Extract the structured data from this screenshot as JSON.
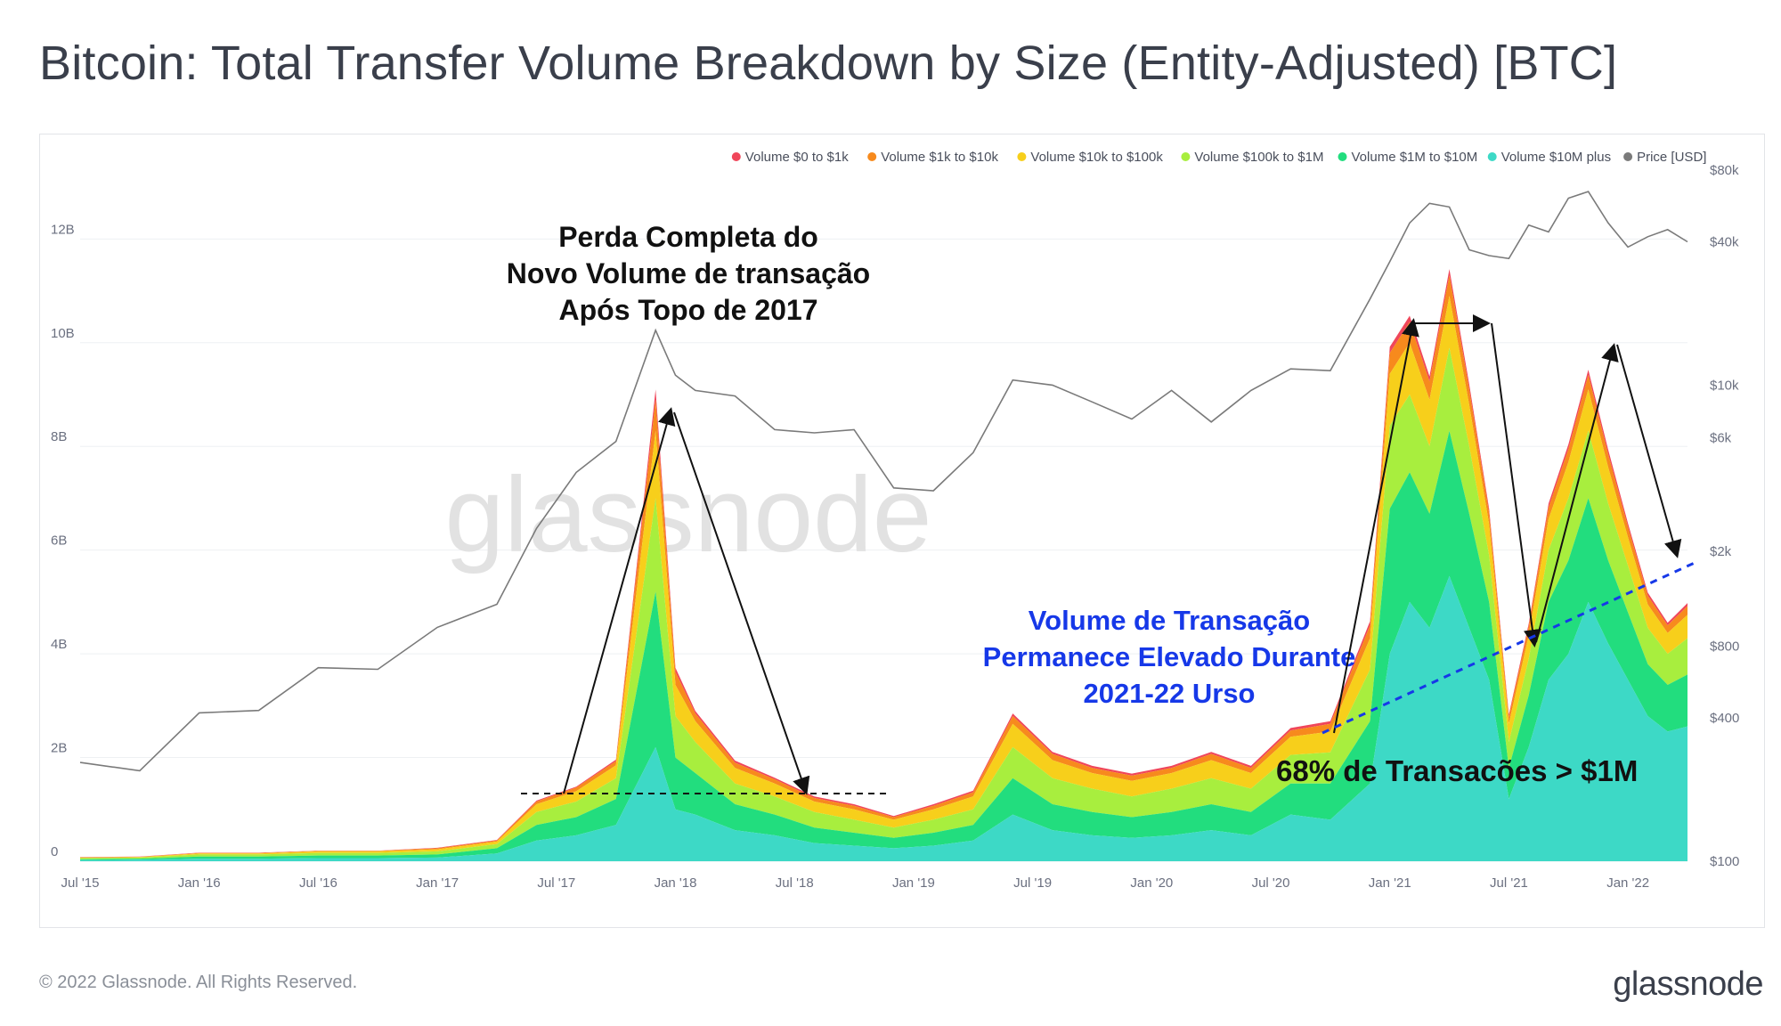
{
  "title": "Bitcoin: Total Transfer Volume Breakdown by Size (Entity-Adjusted) [BTC]",
  "footer": {
    "copyright": "© 2022 Glassnode. All Rights Reserved.",
    "logo": "glassnode"
  },
  "watermark": "glassnode",
  "chart_data": {
    "type": "area",
    "stacked": true,
    "y_left": {
      "ticks": [
        "0",
        "2B",
        "4B",
        "6B",
        "8B",
        "10B",
        "12B"
      ],
      "tick_values": [
        0,
        2,
        4,
        6,
        8,
        10,
        12
      ],
      "ylim": [
        0,
        13.5
      ],
      "unit": "billion BTC"
    },
    "y_right": {
      "scale": "log",
      "ticks": [
        "$100",
        "$400",
        "$800",
        "$2k",
        "$6k",
        "$10k",
        "$40k",
        "$80k"
      ],
      "tick_values": [
        100,
        400,
        800,
        2000,
        6000,
        10000,
        40000,
        80000
      ]
    },
    "x_ticks": [
      "Jul '15",
      "Jan '16",
      "Jul '16",
      "Jan '17",
      "Jul '17",
      "Jan '18",
      "Jul '18",
      "Jan '19",
      "Jul '19",
      "Jan '20",
      "Jul '20",
      "Jan '21",
      "Jul '21",
      "Jan '22"
    ],
    "x_range": [
      "2015-07",
      "2022-04"
    ],
    "legend_position": "top-right",
    "grid": true,
    "legend": [
      {
        "name": "Volume $0 to $1k",
        "color": "#f0465a"
      },
      {
        "name": "Volume $1k to $10k",
        "color": "#f78a1d"
      },
      {
        "name": "Volume $10k to $100k",
        "color": "#f7cf1b"
      },
      {
        "name": "Volume $100k to $1M",
        "color": "#a8ee3e"
      },
      {
        "name": "Volume $1M to $10M",
        "color": "#22dd7e"
      },
      {
        "name": "Volume $10M plus",
        "color": "#3dd9c6"
      },
      {
        "name": "Price [USD]",
        "color": "#7a7a7a"
      }
    ],
    "dates": [
      "2015-07",
      "2015-10",
      "2016-01",
      "2016-04",
      "2016-07",
      "2016-10",
      "2017-01",
      "2017-04",
      "2017-06",
      "2017-08",
      "2017-10",
      "2017-12",
      "2018-01",
      "2018-02",
      "2018-04",
      "2018-06",
      "2018-08",
      "2018-10",
      "2018-12",
      "2019-02",
      "2019-04",
      "2019-06",
      "2019-08",
      "2019-10",
      "2019-12",
      "2020-02",
      "2020-04",
      "2020-06",
      "2020-08",
      "2020-10",
      "2020-12",
      "2021-01",
      "2021-02",
      "2021-03",
      "2021-04",
      "2021-05",
      "2021-06",
      "2021-07",
      "2021-08",
      "2021-09",
      "2021-10",
      "2021-11",
      "2021-12",
      "2022-01",
      "2022-02",
      "2022-03",
      "2022-04"
    ],
    "series": [
      {
        "name": "Volume $10M plus",
        "values": [
          0.02,
          0.03,
          0.05,
          0.05,
          0.06,
          0.06,
          0.07,
          0.15,
          0.4,
          0.5,
          0.7,
          2.2,
          1.0,
          0.9,
          0.6,
          0.5,
          0.35,
          0.3,
          0.25,
          0.3,
          0.4,
          0.9,
          0.6,
          0.5,
          0.45,
          0.5,
          0.6,
          0.5,
          0.9,
          0.8,
          1.5,
          4.0,
          5.0,
          4.5,
          5.5,
          4.5,
          3.5,
          1.2,
          2.2,
          3.5,
          4.0,
          5.0,
          4.2,
          3.5,
          2.8,
          2.5,
          2.6
        ]
      },
      {
        "name": "Volume $1M to $10M",
        "values": [
          0.02,
          0.02,
          0.04,
          0.04,
          0.05,
          0.05,
          0.06,
          0.1,
          0.3,
          0.35,
          0.5,
          3.0,
          1.0,
          0.8,
          0.5,
          0.4,
          0.3,
          0.25,
          0.2,
          0.25,
          0.3,
          0.7,
          0.5,
          0.45,
          0.4,
          0.45,
          0.5,
          0.45,
          0.6,
          0.7,
          1.2,
          2.8,
          2.5,
          2.2,
          2.8,
          2.2,
          1.5,
          0.6,
          1.0,
          1.5,
          1.8,
          2.0,
          1.6,
          1.3,
          1.0,
          0.9,
          1.0
        ]
      },
      {
        "name": "Volume $100k to $1M",
        "values": [
          0.02,
          0.02,
          0.04,
          0.04,
          0.05,
          0.05,
          0.06,
          0.08,
          0.25,
          0.3,
          0.4,
          1.8,
          0.8,
          0.6,
          0.4,
          0.35,
          0.3,
          0.25,
          0.2,
          0.25,
          0.3,
          0.6,
          0.5,
          0.45,
          0.4,
          0.45,
          0.5,
          0.45,
          0.55,
          0.6,
          1.0,
          1.6,
          1.5,
          1.3,
          1.6,
          1.3,
          0.9,
          0.5,
          0.7,
          1.0,
          1.2,
          1.3,
          1.1,
          0.9,
          0.7,
          0.6,
          0.7
        ]
      },
      {
        "name": "Volume $10k to $100k",
        "values": [
          0.01,
          0.01,
          0.02,
          0.02,
          0.03,
          0.03,
          0.04,
          0.05,
          0.15,
          0.2,
          0.25,
          1.3,
          0.6,
          0.4,
          0.3,
          0.25,
          0.2,
          0.2,
          0.15,
          0.2,
          0.25,
          0.45,
          0.35,
          0.3,
          0.3,
          0.3,
          0.35,
          0.3,
          0.35,
          0.4,
          0.6,
          1.0,
          1.0,
          0.9,
          1.0,
          0.8,
          0.6,
          0.35,
          0.45,
          0.6,
          0.7,
          0.8,
          0.7,
          0.55,
          0.45,
          0.4,
          0.45
        ]
      },
      {
        "name": "Volume $1k to $10k",
        "values": [
          0.005,
          0.005,
          0.01,
          0.01,
          0.01,
          0.01,
          0.02,
          0.02,
          0.05,
          0.07,
          0.08,
          0.6,
          0.25,
          0.15,
          0.1,
          0.08,
          0.07,
          0.07,
          0.05,
          0.07,
          0.08,
          0.15,
          0.12,
          0.1,
          0.1,
          0.1,
          0.12,
          0.1,
          0.12,
          0.15,
          0.25,
          0.4,
          0.4,
          0.35,
          0.4,
          0.3,
          0.22,
          0.13,
          0.17,
          0.22,
          0.25,
          0.28,
          0.25,
          0.2,
          0.17,
          0.15,
          0.17
        ]
      },
      {
        "name": "Volume $0 to $1k",
        "values": [
          0.005,
          0.005,
          0.005,
          0.005,
          0.005,
          0.005,
          0.01,
          0.01,
          0.02,
          0.02,
          0.03,
          0.2,
          0.08,
          0.05,
          0.04,
          0.03,
          0.03,
          0.03,
          0.02,
          0.03,
          0.03,
          0.05,
          0.04,
          0.04,
          0.04,
          0.04,
          0.04,
          0.04,
          0.05,
          0.05,
          0.08,
          0.12,
          0.12,
          0.1,
          0.12,
          0.1,
          0.08,
          0.05,
          0.06,
          0.08,
          0.09,
          0.1,
          0.09,
          0.07,
          0.06,
          0.05,
          0.06
        ]
      }
    ],
    "price_usd": [
      260,
      240,
      420,
      430,
      650,
      640,
      960,
      1200,
      2500,
      4300,
      5800,
      17000,
      11000,
      9500,
      9000,
      6500,
      6300,
      6500,
      3700,
      3600,
      5200,
      10500,
      10000,
      8500,
      7200,
      9500,
      7000,
      9500,
      11700,
      11500,
      23000,
      33000,
      48000,
      58000,
      56000,
      37000,
      35000,
      34000,
      47000,
      44000,
      61000,
      65000,
      48000,
      38000,
      42000,
      45000,
      40000
    ]
  },
  "annotations": {
    "top_left": {
      "lines": [
        "Perda Completa do",
        "Novo Volume de transação",
        "Após Topo de 2017"
      ]
    },
    "blue_note": {
      "lines": [
        "Volume de Transação",
        "Permanece Elevado Durante",
        "2021-22 Urso"
      ]
    },
    "bottom_right": {
      "text": "68% de Transacões > $1M"
    }
  }
}
